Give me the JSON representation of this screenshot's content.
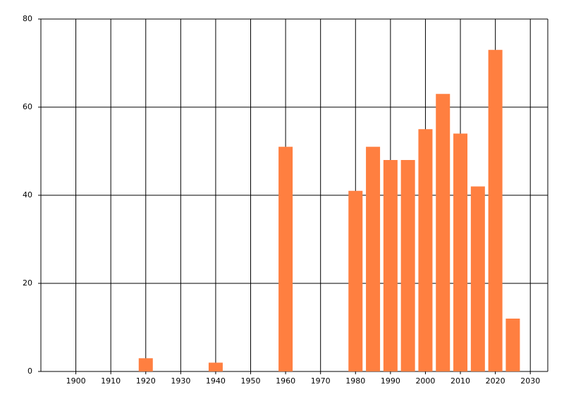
{
  "chart_data": {
    "type": "bar",
    "x": [
      1920,
      1940,
      1960,
      1980,
      1985,
      1990,
      1995,
      2000,
      2005,
      2010,
      2015,
      2020,
      2025
    ],
    "values": [
      3,
      2,
      51,
      41,
      51,
      48,
      48,
      55,
      63,
      54,
      42,
      73,
      12
    ],
    "color": "#ff7f40",
    "xlim": [
      1890,
      2035
    ],
    "xticks": [
      1900,
      1910,
      1920,
      1930,
      1940,
      1950,
      1960,
      1970,
      1980,
      1990,
      2000,
      2010,
      2020,
      2030
    ],
    "ylim": [
      0,
      80
    ],
    "yticks": [
      0,
      20,
      40,
      60,
      80
    ],
    "grid": true
  }
}
